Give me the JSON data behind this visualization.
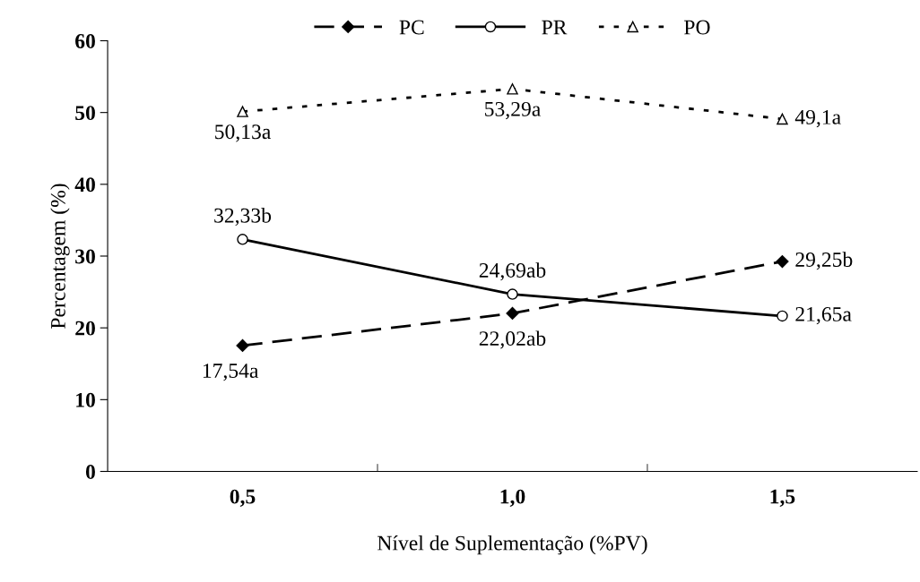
{
  "chart_data": {
    "type": "line",
    "xlabel": "Nível de Suplementação (%PV)",
    "ylabel": "Percentagem (%)",
    "categories": [
      "0,5",
      "1,0",
      "1,5"
    ],
    "series": [
      {
        "name": "PC",
        "color": "#000000",
        "values": [
          17.54,
          22.02,
          29.25
        ],
        "marker": "diamond",
        "line_style": "dashed",
        "value_labels": [
          "17,54a",
          "22,02ab",
          "29,25b"
        ]
      },
      {
        "name": "PR",
        "color": "#000000",
        "values": [
          32.33,
          24.69,
          21.65
        ],
        "marker": "circle",
        "line_style": "solid",
        "value_labels": [
          "32,33b",
          "24,69ab",
          "21,65a"
        ]
      },
      {
        "name": "PO",
        "color": "#000000",
        "values": [
          50.13,
          53.29,
          49.1
        ],
        "marker": "triangle",
        "line_style": "dotted",
        "value_labels": [
          "50,13a",
          "53,29a",
          "49,1a"
        ]
      }
    ],
    "ylim": [
      0,
      60
    ],
    "yticks": [
      0,
      10,
      20,
      30,
      40,
      50,
      60
    ],
    "grid": false,
    "legend": "top"
  }
}
